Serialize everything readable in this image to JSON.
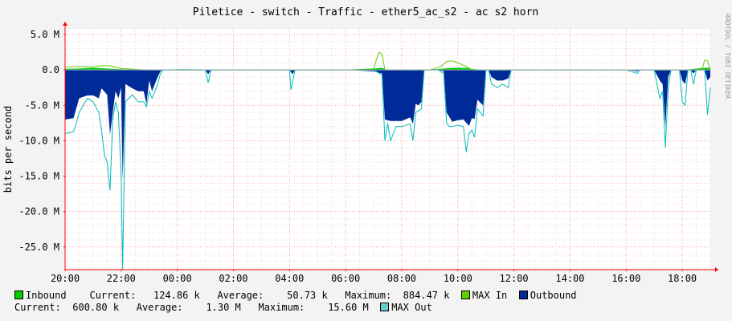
{
  "chart_data": {
    "type": "area",
    "title": "Piletice - switch - Traffic - ether5_ac_s2 - ac s2 horn",
    "ylabel": "bits per second",
    "side_label": "RRDTOOL / TOBI OETIKER",
    "x_ticks": [
      "20:00",
      "22:00",
      "00:00",
      "02:00",
      "04:00",
      "06:00",
      "08:00",
      "10:00",
      "12:00",
      "14:00",
      "16:00",
      "18:00"
    ],
    "y_ticks": [
      "5.0 M",
      "0.0",
      "-5.0 M",
      "-10.0 M",
      "-15.0 M",
      "-20.0 M",
      "-25.0 M"
    ],
    "ylim": [
      -28.2,
      5.8
    ],
    "x_range_hours": [
      20,
      43
    ],
    "grid": true,
    "colors": {
      "inbound": "#00cc00",
      "max_in": "#66cc00",
      "outbound": "#002a97",
      "max_out": "#00bbbb",
      "axis": "#ff0000",
      "grid": "#ff9a9a",
      "background": "#ffffff"
    },
    "series": [
      {
        "name": "Inbound",
        "unit": "M bits/s",
        "points": [
          [
            20.0,
            0.15
          ],
          [
            20.5,
            0.2
          ],
          [
            21.0,
            0.3
          ],
          [
            21.5,
            0.2
          ],
          [
            22.0,
            0.1
          ],
          [
            22.5,
            0.05
          ],
          [
            22.9,
            0.0
          ],
          [
            23.4,
            0.0
          ],
          [
            24.0,
            0.1
          ],
          [
            26.0,
            0.05
          ],
          [
            28.0,
            0.05
          ],
          [
            30.0,
            0.05
          ],
          [
            31.0,
            0.2
          ],
          [
            31.3,
            0.3
          ],
          [
            31.5,
            0.0
          ],
          [
            33.0,
            0.05
          ],
          [
            33.5,
            0.2
          ],
          [
            33.8,
            0.3
          ],
          [
            34.3,
            0.3
          ],
          [
            34.6,
            0.1
          ],
          [
            35.0,
            0.0
          ],
          [
            38.0,
            0.0
          ],
          [
            40.0,
            0.05
          ],
          [
            41.5,
            0.0
          ],
          [
            42.0,
            0.0
          ],
          [
            42.8,
            0.3
          ],
          [
            43.0,
            0.3
          ]
        ]
      },
      {
        "name": "MAX In",
        "unit": "M bits/s",
        "points": [
          [
            20.0,
            0.4
          ],
          [
            20.5,
            0.5
          ],
          [
            21.0,
            0.4
          ],
          [
            21.3,
            0.6
          ],
          [
            21.6,
            0.6
          ],
          [
            22.0,
            0.2
          ],
          [
            22.9,
            0.0
          ],
          [
            23.4,
            0.0
          ],
          [
            31.0,
            0.0
          ],
          [
            31.1,
            1.5
          ],
          [
            31.2,
            2.5
          ],
          [
            31.3,
            2.2
          ],
          [
            31.4,
            0.0
          ],
          [
            33.0,
            0.0
          ],
          [
            33.4,
            0.5
          ],
          [
            33.6,
            1.2
          ],
          [
            33.8,
            1.3
          ],
          [
            34.0,
            1.0
          ],
          [
            34.3,
            0.5
          ],
          [
            34.5,
            0.0
          ],
          [
            35.0,
            0.0
          ],
          [
            42.0,
            0.0
          ],
          [
            42.7,
            0.0
          ],
          [
            42.8,
            1.4
          ],
          [
            42.9,
            1.3
          ],
          [
            43.0,
            0.0
          ]
        ]
      },
      {
        "name": "Outbound",
        "unit": "M bits/s",
        "points": [
          [
            20.0,
            -7.0
          ],
          [
            20.3,
            -6.8
          ],
          [
            20.5,
            -4.0
          ],
          [
            20.8,
            -3.6
          ],
          [
            21.0,
            -3.6
          ],
          [
            21.2,
            -4.0
          ],
          [
            21.3,
            -2.6
          ],
          [
            21.5,
            -3.5
          ],
          [
            21.6,
            -9.1
          ],
          [
            21.8,
            -3.0
          ],
          [
            21.9,
            -4.0
          ],
          [
            22.0,
            -2.5
          ],
          [
            22.05,
            -15.6
          ],
          [
            22.15,
            -2.0
          ],
          [
            22.4,
            -2.6
          ],
          [
            22.6,
            -3.0
          ],
          [
            22.8,
            -3.0
          ],
          [
            22.9,
            -4.8
          ],
          [
            23.0,
            -1.5
          ],
          [
            23.1,
            -3.0
          ],
          [
            23.3,
            -1.0
          ],
          [
            23.4,
            -0.2
          ],
          [
            23.5,
            0.0
          ],
          [
            24.0,
            0.0
          ],
          [
            24.5,
            0.0
          ],
          [
            25.0,
            0.0
          ],
          [
            25.1,
            -0.6
          ],
          [
            25.2,
            0.0
          ],
          [
            26.0,
            0.0
          ],
          [
            27.0,
            0.0
          ],
          [
            28.0,
            0.0
          ],
          [
            28.1,
            -0.6
          ],
          [
            28.2,
            0.0
          ],
          [
            30.0,
            0.0
          ],
          [
            31.0,
            -0.2
          ],
          [
            31.3,
            -0.5
          ],
          [
            31.4,
            -7.0
          ],
          [
            31.6,
            -7.2
          ],
          [
            32.0,
            -7.2
          ],
          [
            32.3,
            -6.7
          ],
          [
            32.4,
            -7.6
          ],
          [
            32.5,
            -4.8
          ],
          [
            32.6,
            -5.0
          ],
          [
            32.7,
            -4.5
          ],
          [
            32.8,
            0.0
          ],
          [
            33.3,
            0.0
          ],
          [
            33.5,
            -0.2
          ],
          [
            33.6,
            -6.0
          ],
          [
            33.8,
            -7.3
          ],
          [
            34.0,
            -7.1
          ],
          [
            34.2,
            -7.0
          ],
          [
            34.4,
            -7.9
          ],
          [
            34.5,
            -6.8
          ],
          [
            34.6,
            -6.9
          ],
          [
            34.7,
            -4.2
          ],
          [
            34.9,
            -5.0
          ],
          [
            35.0,
            0.0
          ],
          [
            35.1,
            0.0
          ],
          [
            35.2,
            -1.0
          ],
          [
            35.4,
            -1.5
          ],
          [
            35.6,
            -1.5
          ],
          [
            35.8,
            -1.2
          ],
          [
            35.9,
            0.0
          ],
          [
            36.5,
            0.0
          ],
          [
            38.0,
            0.0
          ],
          [
            40.0,
            0.0
          ],
          [
            40.4,
            -0.2
          ],
          [
            40.5,
            0.0
          ],
          [
            41.0,
            0.0
          ],
          [
            41.2,
            -1.5
          ],
          [
            41.3,
            -2.0
          ],
          [
            41.4,
            -8.0
          ],
          [
            41.5,
            -1.0
          ],
          [
            41.6,
            0.0
          ],
          [
            41.9,
            0.0
          ],
          [
            42.0,
            -1.5
          ],
          [
            42.1,
            -2.0
          ],
          [
            42.2,
            0.0
          ],
          [
            42.3,
            0.0
          ],
          [
            42.4,
            -0.5
          ],
          [
            42.5,
            0.0
          ],
          [
            42.8,
            0.0
          ],
          [
            42.9,
            -1.5
          ],
          [
            43.0,
            -1.0
          ]
        ]
      },
      {
        "name": "MAX Out",
        "unit": "M bits/s",
        "points": [
          [
            20.0,
            -9.0
          ],
          [
            20.3,
            -8.7
          ],
          [
            20.4,
            -7.5
          ],
          [
            20.5,
            -6.0
          ],
          [
            20.8,
            -4.0
          ],
          [
            21.0,
            -4.5
          ],
          [
            21.2,
            -6.0
          ],
          [
            21.3,
            -8.5
          ],
          [
            21.4,
            -12.0
          ],
          [
            21.5,
            -13.0
          ],
          [
            21.6,
            -17.0
          ],
          [
            21.7,
            -7.0
          ],
          [
            21.8,
            -4.5
          ],
          [
            21.9,
            -6.0
          ],
          [
            22.0,
            -15.0
          ],
          [
            22.05,
            -28.2
          ],
          [
            22.15,
            -4.5
          ],
          [
            22.4,
            -3.5
          ],
          [
            22.6,
            -4.5
          ],
          [
            22.8,
            -4.5
          ],
          [
            22.9,
            -5.2
          ],
          [
            23.0,
            -3.0
          ],
          [
            23.1,
            -4.0
          ],
          [
            23.3,
            -2.0
          ],
          [
            23.4,
            -0.5
          ],
          [
            23.5,
            0.0
          ],
          [
            24.0,
            0.0
          ],
          [
            25.0,
            0.0
          ],
          [
            25.1,
            -1.8
          ],
          [
            25.2,
            0.0
          ],
          [
            28.0,
            0.0
          ],
          [
            28.05,
            -2.8
          ],
          [
            28.2,
            0.0
          ],
          [
            31.0,
            0.0
          ],
          [
            31.3,
            -0.7
          ],
          [
            31.4,
            -10.0
          ],
          [
            31.5,
            -7.5
          ],
          [
            31.6,
            -10.0
          ],
          [
            31.8,
            -8.0
          ],
          [
            32.0,
            -8.0
          ],
          [
            32.3,
            -7.6
          ],
          [
            32.4,
            -10.0
          ],
          [
            32.5,
            -6.0
          ],
          [
            32.7,
            -5.5
          ],
          [
            32.8,
            0.0
          ],
          [
            33.3,
            0.0
          ],
          [
            33.5,
            -0.5
          ],
          [
            33.6,
            -7.5
          ],
          [
            33.7,
            -8.0
          ],
          [
            33.8,
            -8.0
          ],
          [
            34.0,
            -7.8
          ],
          [
            34.2,
            -8.0
          ],
          [
            34.3,
            -11.6
          ],
          [
            34.4,
            -9.0
          ],
          [
            34.5,
            -8.5
          ],
          [
            34.6,
            -9.5
          ],
          [
            34.7,
            -5.5
          ],
          [
            34.9,
            -6.5
          ],
          [
            35.0,
            0.0
          ],
          [
            35.1,
            0.0
          ],
          [
            35.2,
            -2.0
          ],
          [
            35.4,
            -2.5
          ],
          [
            35.6,
            -2.0
          ],
          [
            35.8,
            -2.5
          ],
          [
            35.9,
            0.0
          ],
          [
            38.0,
            0.0
          ],
          [
            40.0,
            0.0
          ],
          [
            40.4,
            -0.5
          ],
          [
            40.5,
            0.0
          ],
          [
            41.0,
            0.0
          ],
          [
            41.2,
            -4.0
          ],
          [
            41.3,
            -3.0
          ],
          [
            41.4,
            -11.0
          ],
          [
            41.5,
            -2.5
          ],
          [
            41.6,
            0.0
          ],
          [
            41.9,
            0.0
          ],
          [
            42.0,
            -4.5
          ],
          [
            42.1,
            -5.0
          ],
          [
            42.2,
            0.0
          ],
          [
            42.3,
            0.0
          ],
          [
            42.4,
            -2.0
          ],
          [
            42.5,
            0.0
          ],
          [
            42.8,
            0.0
          ],
          [
            42.9,
            -6.3
          ],
          [
            43.0,
            -2.5
          ]
        ]
      }
    ]
  },
  "legend": {
    "row1": {
      "inbound_label": "Inbound",
      "current_label": "Current:",
      "current_value": "124.86 k",
      "average_label": "Average:",
      "average_value": "50.73 k",
      "maximum_label": "Maximum:",
      "maximum_value": "884.47 k",
      "max_in_label": "MAX In",
      "outbound_label": "Outbound"
    },
    "row2": {
      "current_label": "Current:",
      "current_value": "600.80 k",
      "average_label": "Average:",
      "average_value": "1.30 M",
      "maximum_label": "Maximum:",
      "maximum_value": "15.60 M",
      "max_out_label": "MAX Out"
    }
  }
}
